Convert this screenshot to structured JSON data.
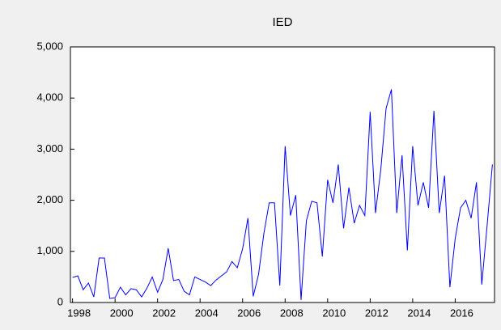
{
  "chart_data": {
    "type": "line",
    "title": "IED",
    "x": [
      1998,
      1998.25,
      1998.5,
      1998.75,
      1999,
      1999.25,
      1999.5,
      1999.75,
      2000,
      2000.25,
      2000.5,
      2000.75,
      2001,
      2001.25,
      2001.5,
      2001.75,
      2002,
      2002.25,
      2002.5,
      2002.75,
      2003,
      2003.25,
      2003.5,
      2003.75,
      2004,
      2004.25,
      2004.5,
      2004.75,
      2005,
      2005.25,
      2005.5,
      2005.75,
      2006,
      2006.25,
      2006.5,
      2006.75,
      2007,
      2007.25,
      2007.5,
      2007.75,
      2008,
      2008.25,
      2008.5,
      2008.75,
      2009,
      2009.25,
      2009.5,
      2009.75,
      2010,
      2010.25,
      2010.5,
      2010.75,
      2011,
      2011.25,
      2011.5,
      2011.75,
      2012,
      2012.25,
      2012.5,
      2012.75,
      2013,
      2013.25,
      2013.5,
      2013.75,
      2014,
      2014.25,
      2014.5,
      2014.75,
      2015,
      2015.25,
      2015.5,
      2015.75,
      2016,
      2016.25,
      2016.5,
      2016.75,
      2017,
      2017.25,
      2017.5,
      2017.75
    ],
    "values": [
      490,
      520,
      250,
      380,
      110,
      870,
      870,
      80,
      95,
      300,
      150,
      270,
      250,
      110,
      280,
      500,
      200,
      450,
      1060,
      430,
      450,
      220,
      150,
      500,
      450,
      400,
      330,
      440,
      520,
      600,
      800,
      680,
      1050,
      1650,
      120,
      550,
      1350,
      1950,
      1950,
      330,
      3060,
      1700,
      2100,
      50,
      1600,
      1980,
      1950,
      900,
      2400,
      1950,
      2700,
      1450,
      2250,
      1550,
      1900,
      1700,
      3730,
      1750,
      2600,
      3800,
      4170,
      1750,
      2880,
      1020,
      3060,
      1900,
      2350,
      1850,
      3750,
      1750,
      2480,
      300,
      1250,
      1850,
      2000,
      1650,
      2350,
      350,
      1500,
      2700
    ],
    "color": "#0000ff",
    "xlim": [
      1997.9,
      2017.85
    ],
    "xticks": [
      1998,
      2000,
      2002,
      2004,
      2006,
      2008,
      2010,
      2012,
      2014,
      2016
    ],
    "ylim": [
      0,
      5000
    ],
    "yticks": [
      0,
      {
        "value": 1000,
        "label": "1,000"
      },
      {
        "value": 2000,
        "label": "2,000"
      },
      {
        "value": 3000,
        "label": "3,000"
      },
      {
        "value": 4000,
        "label": "4,000"
      },
      {
        "value": 5000,
        "label": "5,000"
      }
    ],
    "grid": false
  }
}
